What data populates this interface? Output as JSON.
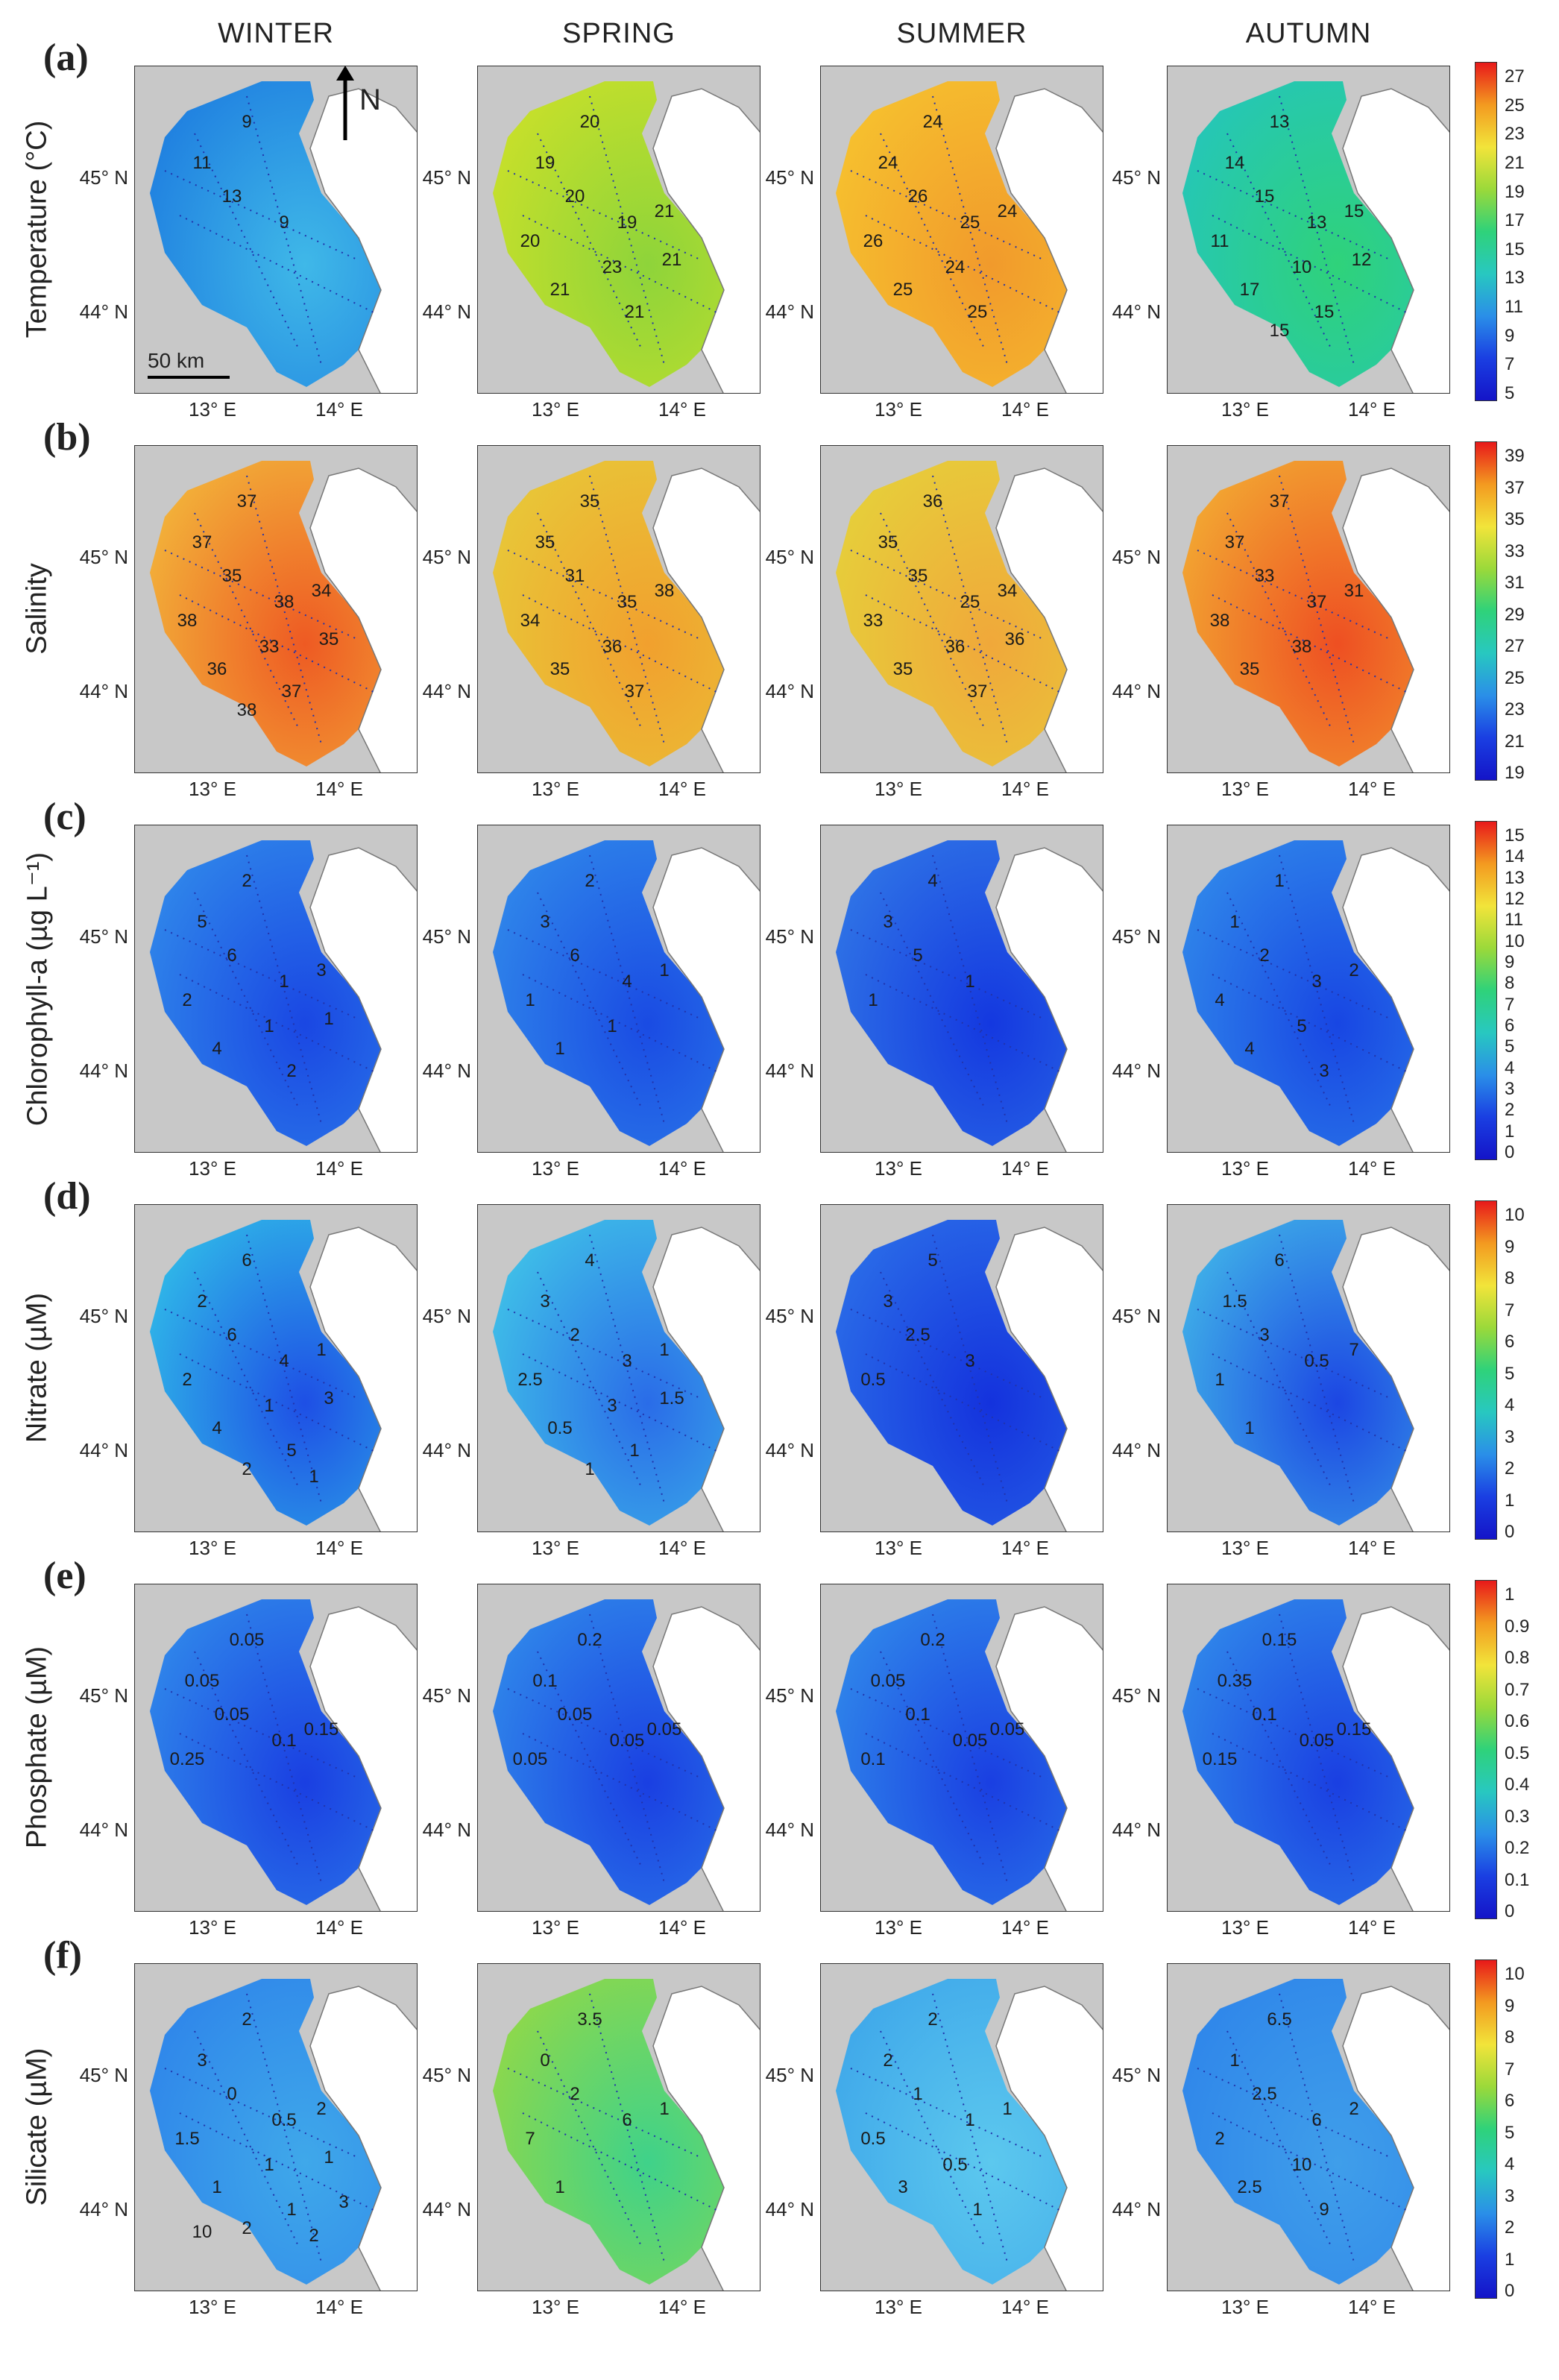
{
  "seasons": [
    "WINTER",
    "SPRING",
    "SUMMER",
    "AUTUMN"
  ],
  "lat_labels": [
    "45° N",
    "44° N"
  ],
  "lon_labels": [
    "13° E",
    "14° E"
  ],
  "north_label": "N",
  "scale_label": "50 km",
  "rows": [
    {
      "letter": "(a)",
      "ylabel": "Temperature (°C)",
      "colorbar_ticks": [
        "27",
        "25",
        "23",
        "21",
        "19",
        "17",
        "15",
        "13",
        "11",
        "9",
        "7",
        "5"
      ],
      "panels": [
        {
          "fill": "#3fb8e8",
          "fill2": "#1f7fe0",
          "contours": [
            "9",
            "11",
            "13",
            "9"
          ]
        },
        {
          "fill": "#8ed43a",
          "fill2": "#c8e02a",
          "contours": [
            "20",
            "19",
            "20",
            "19",
            "20",
            "21",
            "21",
            "23",
            "21",
            "21"
          ]
        },
        {
          "fill": "#f19a2c",
          "fill2": "#f6c12e",
          "contours": [
            "24",
            "24",
            "26",
            "25",
            "26",
            "24",
            "25",
            "24",
            "25"
          ]
        },
        {
          "fill": "#2fd27a",
          "fill2": "#25c6b8",
          "contours": [
            "13",
            "14",
            "15",
            "13",
            "11",
            "15",
            "17",
            "10",
            "15",
            "12",
            "15"
          ]
        }
      ]
    },
    {
      "letter": "(b)",
      "ylabel": "Salinity",
      "colorbar_ticks": [
        "39",
        "37",
        "35",
        "33",
        "31",
        "29",
        "27",
        "25",
        "23",
        "21",
        "19"
      ],
      "panels": [
        {
          "fill": "#ee5a23",
          "fill2": "#f2b33a",
          "contours": [
            "37",
            "37",
            "35",
            "38",
            "38",
            "34",
            "36",
            "33",
            "37",
            "35",
            "38"
          ]
        },
        {
          "fill": "#f1a02e",
          "fill2": "#e8c738",
          "contours": [
            "35",
            "35",
            "31",
            "35",
            "34",
            "38",
            "35",
            "36",
            "37"
          ]
        },
        {
          "fill": "#f0a83a",
          "fill2": "#e6cf3a",
          "contours": [
            "36",
            "35",
            "35",
            "25",
            "33",
            "34",
            "35",
            "36",
            "37",
            "36"
          ]
        },
        {
          "fill": "#ee4f22",
          "fill2": "#f2a832",
          "contours": [
            "37",
            "37",
            "33",
            "37",
            "38",
            "31",
            "35",
            "38"
          ]
        }
      ]
    },
    {
      "letter": "(c)",
      "ylabel": "Chlorophyll-a (µg L⁻¹)",
      "colorbar_ticks": [
        "15",
        "14",
        "13",
        "12",
        "11",
        "10",
        "9",
        "8",
        "7",
        "6",
        "5",
        "4",
        "3",
        "2",
        "1",
        "0"
      ],
      "panels": [
        {
          "fill": "#1a47e3",
          "fill2": "#2f86ea",
          "contours": [
            "2",
            "5",
            "6",
            "1",
            "2",
            "3",
            "4",
            "1",
            "2",
            "1"
          ]
        },
        {
          "fill": "#1a4be3",
          "fill2": "#2f86ea",
          "contours": [
            "2",
            "3",
            "6",
            "4",
            "1",
            "1",
            "1",
            "1"
          ]
        },
        {
          "fill": "#1438e0",
          "fill2": "#2f74e6",
          "contours": [
            "4",
            "3",
            "5",
            "1",
            "1"
          ]
        },
        {
          "fill": "#1846e3",
          "fill2": "#2f86ea",
          "contours": [
            "1",
            "1",
            "2",
            "3",
            "4",
            "2",
            "4",
            "5",
            "3"
          ]
        }
      ]
    },
    {
      "letter": "(d)",
      "ylabel": "Nitrate (µM)",
      "colorbar_ticks": [
        "10",
        "9",
        "8",
        "7",
        "6",
        "5",
        "4",
        "3",
        "2",
        "1",
        "0"
      ],
      "panels": [
        {
          "fill": "#1e4fe5",
          "fill2": "#2fb8e8",
          "contours": [
            "6",
            "2",
            "6",
            "4",
            "2",
            "1",
            "4",
            "1",
            "5",
            "3",
            "2",
            "1"
          ]
        },
        {
          "fill": "#2a6ce8",
          "fill2": "#3fc0e8",
          "contours": [
            "4",
            "3",
            "2",
            "3",
            "2.5",
            "1",
            "0.5",
            "3",
            "1",
            "1.5",
            "1"
          ]
        },
        {
          "fill": "#1432dd",
          "fill2": "#2a6ce8",
          "contours": [
            "5",
            "3",
            "2.5",
            "3",
            "0.5"
          ]
        },
        {
          "fill": "#1c46e3",
          "fill2": "#3fb0e8",
          "contours": [
            "6",
            "1.5",
            "3",
            "0.5",
            "1",
            "7",
            "1"
          ]
        }
      ]
    },
    {
      "letter": "(e)",
      "ylabel": "Phosphate (µM)",
      "colorbar_ticks": [
        "1",
        "0.9",
        "0.8",
        "0.7",
        "0.6",
        "0.5",
        "0.4",
        "0.3",
        "0.2",
        "0.1",
        "0"
      ],
      "panels": [
        {
          "fill": "#1a3fe2",
          "fill2": "#2f86ea",
          "contours": [
            "0.05",
            "0.05",
            "0.05",
            "0.1",
            "0.25",
            "0.15"
          ]
        },
        {
          "fill": "#1a3fe2",
          "fill2": "#2f86ea",
          "contours": [
            "0.2",
            "0.1",
            "0.05",
            "0.05",
            "0.05",
            "0.05"
          ]
        },
        {
          "fill": "#1a3fe2",
          "fill2": "#2f86ea",
          "contours": [
            "0.2",
            "0.05",
            "0.1",
            "0.05",
            "0.1",
            "0.05"
          ]
        },
        {
          "fill": "#1a3fe2",
          "fill2": "#2f86ea",
          "contours": [
            "0.15",
            "0.35",
            "0.1",
            "0.05",
            "0.15",
            "0.15"
          ]
        }
      ]
    },
    {
      "letter": "(f)",
      "ylabel": "Silicate (µM)",
      "colorbar_ticks": [
        "10",
        "9",
        "8",
        "7",
        "6",
        "5",
        "4",
        "3",
        "2",
        "1",
        "0"
      ],
      "panels": [
        {
          "fill": "#3fa8ea",
          "fill2": "#2f86ea",
          "contours": [
            "2",
            "3",
            "0",
            "0.5",
            "1.5",
            "2",
            "1",
            "1",
            "1",
            "1",
            "2",
            "2",
            "10",
            "3"
          ]
        },
        {
          "fill": "#3fd28a",
          "fill2": "#8fd84a",
          "contours": [
            "3.5",
            "0",
            "2",
            "6",
            "7",
            "1",
            "1"
          ]
        },
        {
          "fill": "#5cc8ee",
          "fill2": "#3fa8ea",
          "contours": [
            "2",
            "2",
            "1",
            "1",
            "0.5",
            "1",
            "3",
            "0.5",
            "1"
          ]
        },
        {
          "fill": "#3f9eea",
          "fill2": "#2f86ea",
          "contours": [
            "6.5",
            "1",
            "2.5",
            "6",
            "2",
            "2",
            "2.5",
            "10",
            "9"
          ]
        }
      ]
    }
  ]
}
